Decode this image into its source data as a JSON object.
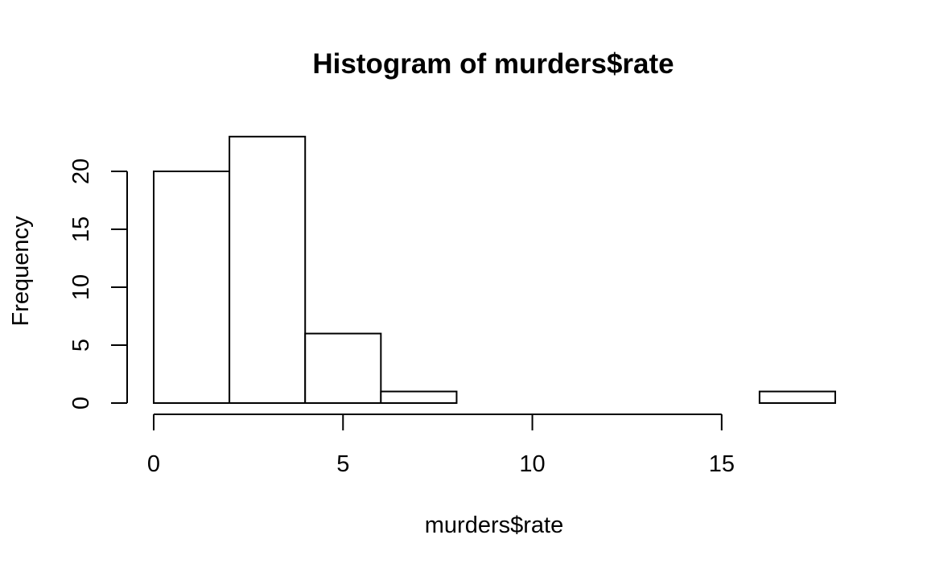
{
  "chart_data": {
    "type": "bar",
    "title": "Histogram of murders$rate",
    "xlabel": "murders$rate",
    "ylabel": "Frequency",
    "bins": [
      {
        "start": 0,
        "end": 2,
        "count": 20
      },
      {
        "start": 2,
        "end": 4,
        "count": 23
      },
      {
        "start": 4,
        "end": 6,
        "count": 6
      },
      {
        "start": 6,
        "end": 8,
        "count": 1
      },
      {
        "start": 8,
        "end": 10,
        "count": 0
      },
      {
        "start": 10,
        "end": 12,
        "count": 0
      },
      {
        "start": 12,
        "end": 14,
        "count": 0
      },
      {
        "start": 14,
        "end": 16,
        "count": 0
      },
      {
        "start": 16,
        "end": 18,
        "count": 1
      }
    ],
    "xticks": [
      0,
      5,
      10,
      15
    ],
    "yticks": [
      0,
      5,
      10,
      15,
      20
    ],
    "xlim": [
      0,
      18
    ],
    "ylim": [
      0,
      23
    ],
    "grid": false,
    "bar_fill": "#ffffff",
    "bar_stroke": "#000000"
  }
}
